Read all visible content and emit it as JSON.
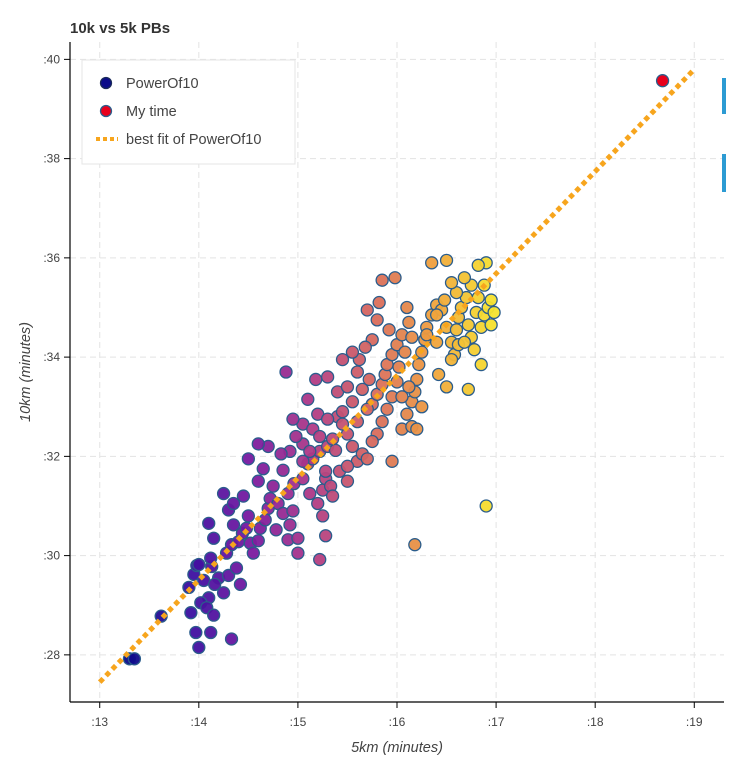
{
  "chart_data": {
    "type": "scatter",
    "title": "10k vs 5k PBs",
    "xlabel": "5km (minutes)",
    "ylabel": "10km (minutes)",
    "xlim": [
      12.7,
      19.3
    ],
    "ylim": [
      27.05,
      40.35
    ],
    "x_ticks": [
      13,
      14,
      15,
      16,
      17,
      18,
      19
    ],
    "x_tick_labels": [
      ":13",
      ":14",
      ":15",
      ":16",
      ":17",
      ":18",
      ":19"
    ],
    "y_ticks": [
      28,
      30,
      32,
      34,
      36,
      38,
      40
    ],
    "y_tick_labels": [
      ":28",
      ":30",
      ":32",
      ":34",
      ":36",
      ":38",
      ":40"
    ],
    "grid": true,
    "legend_position": "top-left",
    "colors": {
      "gradient": [
        "#0b0b8a",
        "#3a0fa0",
        "#7a1aa0",
        "#b03a86",
        "#d86a5e",
        "#f0a23c",
        "#f6e62c"
      ],
      "marker_edge": "#2b5d8c",
      "my_time": "#e8001c",
      "best_fit": "#f7a51d",
      "legend_powerof10": "#0b0b8a"
    },
    "series": [
      {
        "name": "PowerOf10",
        "marker": "circle",
        "color_by": "x",
        "points": [
          [
            13.3,
            27.92
          ],
          [
            13.35,
            27.92
          ],
          [
            13.62,
            28.78
          ],
          [
            13.9,
            29.36
          ],
          [
            13.95,
            29.62
          ],
          [
            13.98,
            29.8
          ],
          [
            14.0,
            29.82
          ],
          [
            14.05,
            29.5
          ],
          [
            14.1,
            29.15
          ],
          [
            14.02,
            29.05
          ],
          [
            13.92,
            28.85
          ],
          [
            14.08,
            28.95
          ],
          [
            13.97,
            28.45
          ],
          [
            14.12,
            28.45
          ],
          [
            14.0,
            28.15
          ],
          [
            14.15,
            28.8
          ],
          [
            14.33,
            28.32
          ],
          [
            14.2,
            29.55
          ],
          [
            14.13,
            29.78
          ],
          [
            14.16,
            29.42
          ],
          [
            14.25,
            29.25
          ],
          [
            14.3,
            29.6
          ],
          [
            14.12,
            29.95
          ],
          [
            14.38,
            29.75
          ],
          [
            14.42,
            29.42
          ],
          [
            14.28,
            30.05
          ],
          [
            14.33,
            30.22
          ],
          [
            14.4,
            30.28
          ],
          [
            14.44,
            30.45
          ],
          [
            14.35,
            30.62
          ],
          [
            14.3,
            30.92
          ],
          [
            14.48,
            30.55
          ],
          [
            14.52,
            30.25
          ],
          [
            14.55,
            30.05
          ],
          [
            14.5,
            30.8
          ],
          [
            14.6,
            30.3
          ],
          [
            14.62,
            30.55
          ],
          [
            14.67,
            30.72
          ],
          [
            14.7,
            30.95
          ],
          [
            14.72,
            31.15
          ],
          [
            14.75,
            31.4
          ],
          [
            14.8,
            31.05
          ],
          [
            14.85,
            30.85
          ],
          [
            14.78,
            30.52
          ],
          [
            14.9,
            30.32
          ],
          [
            14.92,
            30.62
          ],
          [
            15.0,
            30.05
          ],
          [
            14.95,
            30.9
          ],
          [
            14.9,
            31.25
          ],
          [
            14.96,
            31.45
          ],
          [
            14.85,
            31.72
          ],
          [
            15.05,
            31.55
          ],
          [
            15.1,
            31.85
          ],
          [
            15.12,
            31.25
          ],
          [
            15.2,
            31.05
          ],
          [
            15.25,
            31.32
          ],
          [
            15.28,
            31.55
          ],
          [
            15.15,
            31.95
          ],
          [
            15.22,
            32.1
          ],
          [
            15.3,
            32.2
          ],
          [
            15.35,
            32.35
          ],
          [
            15.05,
            32.25
          ],
          [
            14.92,
            32.1
          ],
          [
            14.98,
            32.4
          ],
          [
            14.83,
            32.05
          ],
          [
            14.7,
            32.2
          ],
          [
            14.6,
            32.25
          ],
          [
            14.5,
            31.95
          ],
          [
            14.45,
            31.2
          ],
          [
            14.35,
            31.05
          ],
          [
            14.25,
            31.25
          ],
          [
            14.15,
            30.35
          ],
          [
            14.1,
            30.65
          ],
          [
            14.6,
            31.5
          ],
          [
            14.65,
            31.75
          ],
          [
            15.05,
            32.65
          ],
          [
            14.95,
            32.75
          ],
          [
            15.15,
            32.55
          ],
          [
            15.2,
            32.85
          ],
          [
            15.1,
            33.15
          ],
          [
            15.18,
            33.55
          ],
          [
            15.3,
            33.6
          ],
          [
            15.4,
            32.8
          ],
          [
            15.45,
            32.65
          ],
          [
            15.5,
            32.45
          ],
          [
            15.55,
            32.2
          ],
          [
            15.6,
            31.9
          ],
          [
            15.65,
            32.05
          ],
          [
            15.38,
            32.12
          ],
          [
            15.42,
            31.7
          ],
          [
            15.5,
            31.5
          ],
          [
            15.33,
            31.4
          ],
          [
            15.25,
            30.8
          ],
          [
            15.28,
            30.4
          ],
          [
            15.22,
            29.92
          ],
          [
            15.0,
            30.35
          ],
          [
            15.35,
            31.2
          ],
          [
            15.4,
            33.3
          ],
          [
            15.5,
            33.4
          ],
          [
            15.55,
            33.1
          ],
          [
            15.6,
            33.7
          ],
          [
            15.65,
            33.35
          ],
          [
            15.72,
            33.55
          ],
          [
            15.75,
            33.05
          ],
          [
            15.8,
            33.25
          ],
          [
            15.85,
            33.45
          ],
          [
            15.88,
            33.65
          ],
          [
            15.9,
            33.85
          ],
          [
            15.95,
            34.05
          ],
          [
            16.0,
            34.25
          ],
          [
            16.05,
            34.45
          ],
          [
            15.92,
            34.55
          ],
          [
            15.8,
            34.75
          ],
          [
            15.75,
            34.35
          ],
          [
            15.68,
            34.2
          ],
          [
            15.62,
            33.95
          ],
          [
            15.55,
            34.1
          ],
          [
            15.45,
            33.95
          ],
          [
            15.7,
            34.95
          ],
          [
            15.85,
            35.55
          ],
          [
            15.98,
            35.6
          ],
          [
            15.82,
            35.1
          ],
          [
            16.1,
            35.0
          ],
          [
            16.12,
            34.7
          ],
          [
            16.15,
            34.4
          ],
          [
            16.08,
            34.1
          ],
          [
            16.02,
            33.8
          ],
          [
            16.0,
            33.5
          ],
          [
            15.95,
            33.2
          ],
          [
            15.9,
            32.95
          ],
          [
            15.85,
            32.7
          ],
          [
            15.8,
            32.45
          ],
          [
            15.75,
            32.3
          ],
          [
            15.7,
            31.95
          ],
          [
            15.95,
            31.9
          ],
          [
            16.05,
            32.55
          ],
          [
            16.1,
            32.85
          ],
          [
            16.15,
            33.1
          ],
          [
            16.18,
            33.3
          ],
          [
            16.2,
            33.55
          ],
          [
            16.22,
            33.85
          ],
          [
            16.25,
            34.1
          ],
          [
            16.28,
            34.35
          ],
          [
            16.3,
            34.6
          ],
          [
            16.35,
            34.85
          ],
          [
            16.4,
            35.05
          ],
          [
            16.45,
            34.95
          ],
          [
            16.5,
            34.6
          ],
          [
            16.55,
            34.3
          ],
          [
            16.58,
            34.05
          ],
          [
            16.6,
            34.55
          ],
          [
            16.62,
            34.8
          ],
          [
            16.65,
            35.0
          ],
          [
            16.7,
            35.2
          ],
          [
            16.72,
            34.65
          ],
          [
            16.75,
            34.4
          ],
          [
            16.78,
            34.15
          ],
          [
            16.8,
            34.9
          ],
          [
            16.82,
            35.2
          ],
          [
            16.85,
            34.6
          ],
          [
            16.88,
            34.85
          ],
          [
            16.9,
            35.9
          ],
          [
            16.92,
            35.0
          ],
          [
            16.95,
            34.65
          ],
          [
            16.98,
            34.9
          ],
          [
            16.75,
            35.45
          ],
          [
            16.68,
            35.6
          ],
          [
            16.82,
            35.85
          ],
          [
            16.6,
            35.3
          ],
          [
            16.55,
            35.5
          ],
          [
            16.48,
            35.15
          ],
          [
            16.35,
            35.9
          ],
          [
            16.5,
            35.95
          ],
          [
            16.4,
            34.85
          ],
          [
            16.3,
            34.45
          ],
          [
            16.25,
            33.0
          ],
          [
            16.15,
            32.6
          ],
          [
            16.2,
            32.55
          ],
          [
            16.12,
            33.4
          ],
          [
            16.05,
            33.2
          ],
          [
            16.42,
            33.65
          ],
          [
            16.5,
            33.4
          ],
          [
            16.55,
            33.95
          ],
          [
            16.72,
            33.35
          ],
          [
            16.62,
            34.25
          ],
          [
            16.4,
            34.3
          ],
          [
            16.85,
            33.85
          ],
          [
            16.68,
            34.3
          ],
          [
            16.95,
            35.15
          ],
          [
            16.88,
            35.45
          ],
          [
            16.9,
            31.0
          ],
          [
            16.18,
            30.22
          ],
          [
            15.45,
            32.9
          ],
          [
            15.6,
            32.7
          ],
          [
            15.7,
            32.95
          ],
          [
            15.3,
            32.75
          ],
          [
            15.22,
            32.4
          ],
          [
            15.5,
            31.8
          ],
          [
            15.28,
            31.7
          ],
          [
            14.88,
            33.7
          ],
          [
            15.05,
            31.9
          ],
          [
            15.12,
            32.1
          ]
        ]
      },
      {
        "name": "My time",
        "marker": "circle",
        "points": [
          [
            18.68,
            39.57
          ]
        ]
      },
      {
        "name": "best fit of PowerOf10",
        "type": "line",
        "style": "dotted",
        "points": [
          [
            13.0,
            27.45
          ],
          [
            19.0,
            39.8
          ]
        ]
      }
    ]
  }
}
